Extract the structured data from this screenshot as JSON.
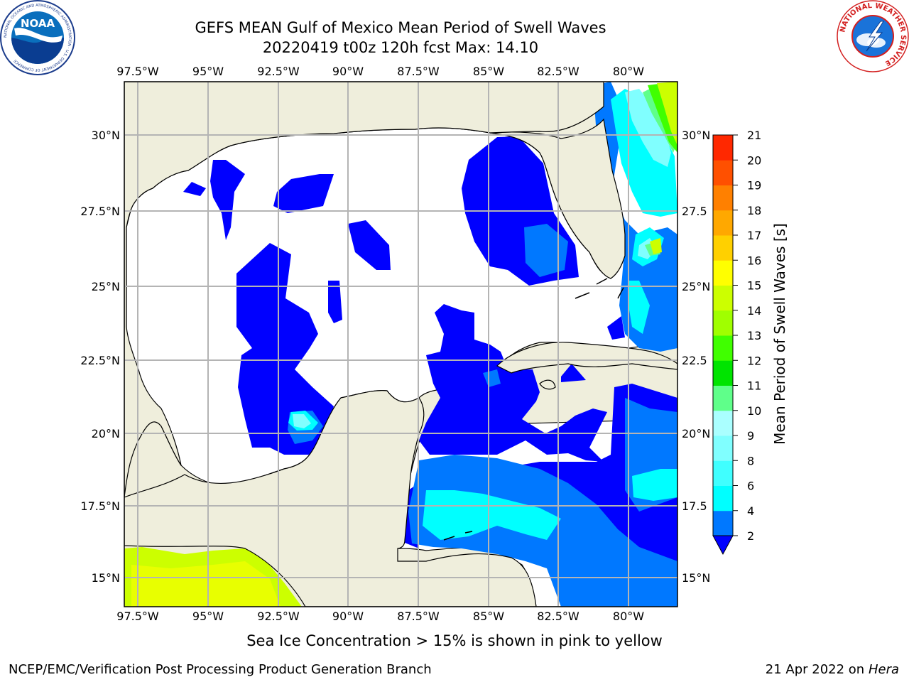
{
  "title": {
    "line1": "GEFS MEAN Gulf of Mexico Mean Period of Swell Waves",
    "line2": "20220419 t00z 120h fcst   Max: 14.10"
  },
  "map": {
    "lon_labels": [
      "97.5°W",
      "95°W",
      "92.5°W",
      "90°W",
      "87.5°W",
      "85°W",
      "82.5°W",
      "80°W"
    ],
    "lat_labels": [
      "30°N",
      "27.5°N",
      "25°N",
      "22.5°N",
      "20°N",
      "17.5°N",
      "15°N"
    ],
    "lat_labels_right": [
      "30°N",
      "27.5",
      "25°N",
      "22.5",
      "20°N",
      "17.5",
      "15°N"
    ],
    "land_color": "#efeedc",
    "grid_color": "#b4b4b4"
  },
  "colorbar": {
    "label": "Mean Period of Swell Waves [s]",
    "ticks": [
      "2",
      "4",
      "6",
      "8",
      "9",
      "10",
      "11",
      "12",
      "13",
      "14",
      "15",
      "16",
      "17",
      "18",
      "19",
      "20",
      "21"
    ],
    "colors": [
      "#0078ff",
      "#00ffff",
      "#40ffff",
      "#80ffff",
      "#aaffff",
      "#5fff8a",
      "#00e400",
      "#40ff00",
      "#a0ff00",
      "#ccff00",
      "#ffff00",
      "#ffd000",
      "#ffa800",
      "#ff8000",
      "#ff5000",
      "#ff2800",
      "#ff0000"
    ],
    "under_color": "#0000ff"
  },
  "note": "Sea Ice Concentration > 15% is shown in pink to yellow",
  "footer": {
    "left": "NCEP/EMC/Verification Post Processing Product Generation Branch",
    "right_date": "21 Apr 2022 on ",
    "right_host": "Hera"
  },
  "logos": {
    "noaa": {
      "text": "NOAA",
      "ring_text": "NATIONAL OCEANIC AND ATMOSPHERIC ADMINISTRATION · U.S. DEPARTMENT OF COMMERCE"
    },
    "nws": {
      "ring_text": "NATIONAL WEATHER SERVICE"
    }
  }
}
